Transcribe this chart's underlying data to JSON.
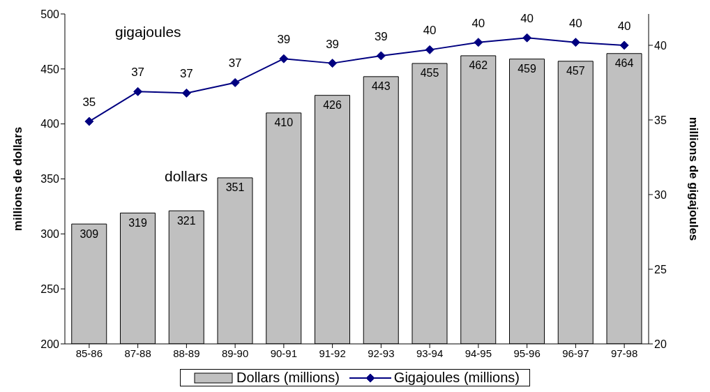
{
  "chart_data": {
    "type": "bar",
    "categories": [
      "85-86",
      "87-88",
      "88-89",
      "89-90",
      "90-91",
      "91-92",
      "92-93",
      "93-94",
      "94-95",
      "95-96",
      "96-97",
      "97-98"
    ],
    "ylabel": "millions de dollars",
    "y2label": "millions de gigajoules",
    "ylim": [
      200,
      500
    ],
    "yticks": [
      200,
      250,
      300,
      350,
      400,
      450,
      500
    ],
    "y2lim": [
      20,
      42.1
    ],
    "y2ticks": [
      20,
      25,
      30,
      35,
      40
    ],
    "series": [
      {
        "name": "Dollars (millions)",
        "color": "#c0c0c0",
        "values": [
          309,
          319,
          321,
          351,
          410,
          426,
          443,
          455,
          462,
          459,
          457,
          464
        ],
        "value_labels": [
          "309",
          "319",
          "321",
          "351",
          "410",
          "426",
          "443",
          "455",
          "462",
          "459",
          "457",
          "464"
        ]
      },
      {
        "name": "Gigajoules (millions)",
        "type": "line",
        "axis": "y2",
        "color": "#000080",
        "marker": "diamond",
        "values": [
          34.9,
          36.9,
          36.8,
          37.5,
          39.1,
          38.8,
          39.3,
          39.7,
          40.2,
          40.5,
          40.2,
          40.0
        ],
        "value_labels": [
          "35",
          "37",
          "37",
          "37",
          "39",
          "39",
          "39",
          "40",
          "40",
          "40",
          "40",
          "40"
        ]
      }
    ],
    "annotations": [
      "gigajoules",
      "dollars"
    ],
    "legend": "bottom",
    "grid": false
  }
}
